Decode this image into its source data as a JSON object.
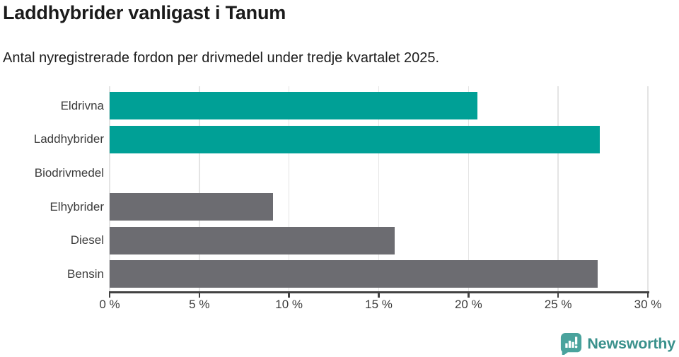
{
  "title": "Laddhybrider vanligast i Tanum",
  "subtitle": "Antal nyregistrerade fordon per drivmedel under tredje kvartalet 2025.",
  "palette": {
    "highlight": "#00a096",
    "default": "#6c6c71",
    "grid": "#e4e4e4",
    "axis": "#424242",
    "logo_icon": "#4aa39d",
    "logo_text": "#3a918c"
  },
  "chart_data": {
    "type": "bar",
    "orientation": "horizontal",
    "title": "Laddhybrider vanligast i Tanum",
    "subtitle": "Antal nyregistrerade fordon per drivmedel under tredje kvartalet 2025.",
    "categories": [
      "Eldrivna",
      "Laddhybrider",
      "Biodrivmedel",
      "Elhybrider",
      "Diesel",
      "Bensin"
    ],
    "values": [
      20.5,
      27.3,
      0,
      9.1,
      15.9,
      27.2
    ],
    "unit": "%",
    "colors": [
      "highlight",
      "highlight",
      "default",
      "default",
      "default",
      "default"
    ],
    "xlim": [
      0,
      30
    ],
    "x_ticks": [
      0,
      5,
      10,
      15,
      20,
      25,
      30
    ],
    "x_tick_labels": [
      "0 %",
      "5 %",
      "10 %",
      "15 %",
      "20 %",
      "25 %",
      "30 %"
    ],
    "grid": true,
    "legend": false
  },
  "footer": {
    "brand": "Newsworthy"
  }
}
